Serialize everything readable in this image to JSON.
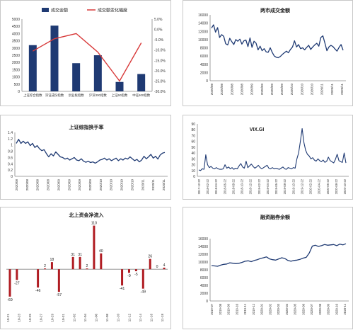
{
  "chart_data": [
    {
      "id": "turnover",
      "type": "bar",
      "categories": [
        "上证综合指数",
        "深证成份指数",
        "创业板指数",
        "沪深300指数",
        "上证50指数",
        "中证500指数"
      ],
      "series": [
        {
          "name": "成交金额",
          "type": "bar",
          "axis": "left",
          "values": [
            3200,
            4550,
            1950,
            2500,
            650,
            1200
          ]
        },
        {
          "name": "成交额变化幅度",
          "type": "line",
          "axis": "right",
          "values": [
            -10.5,
            -4.5,
            -2.0,
            -11.0,
            -25.0,
            -6.5
          ]
        }
      ],
      "yticks_left": [
        "0",
        "500",
        "1000",
        "1500",
        "2000",
        "2500",
        "3000",
        "3500",
        "4000",
        "4500",
        "5000"
      ],
      "ylim_left": [
        0,
        5000
      ],
      "yticks_right": [
        "5.0%",
        "0.0%",
        "-5.0%",
        "-10.0%",
        "-15.0%",
        "-20.0%",
        "-25.0%",
        "-30.0%"
      ],
      "ylim_right": [
        -30,
        5
      ],
      "colors": {
        "bar": "#1f3a73",
        "line": "#d83a3a"
      },
      "legend": "top"
    },
    {
      "id": "two_markets",
      "type": "line",
      "title": "两市成交金额",
      "yticks": [
        "0",
        "2000",
        "4000",
        "6000",
        "8000",
        "10000",
        "12000",
        "14000",
        "16000"
      ],
      "ylim": [
        0,
        16000
      ],
      "xticks": [
        "2020/08",
        "2020/08",
        "2020/08",
        "2020/08",
        "2020/09",
        "2020/09",
        "2020/09",
        "2020/09",
        "2020/10",
        "2020/10",
        "2020/10",
        "2020/11",
        "2020/11",
        "2020/11"
      ],
      "series": [
        {
          "values": [
            12800,
            13600,
            11800,
            12900,
            10500,
            11200,
            10800,
            9000,
            8700,
            10300,
            9500,
            8800,
            10000,
            9600,
            10100,
            8900,
            9700,
            9900,
            8300,
            10400,
            8100,
            9600,
            9100,
            7500,
            8400,
            7300,
            7800,
            7000,
            6900,
            8000,
            6900,
            6000,
            5700,
            5600,
            5900,
            6400,
            6800,
            7200,
            6800,
            7600,
            8200,
            9700,
            8200,
            8800,
            7800,
            8000,
            7500,
            8100,
            8600,
            7600,
            8200,
            8700,
            9100,
            8400,
            10500,
            10900,
            9200,
            7300,
            8200,
            8600,
            8300,
            7700,
            7200,
            8100,
            8800,
            7400
          ]
        }
      ],
      "colors": {
        "line": "#1f3a73"
      }
    },
    {
      "id": "turnover_rate",
      "type": "line",
      "title": "上证综指换手率",
      "yticks": [
        "0",
        "0.2",
        "0.4",
        "0.6",
        "0.8",
        "1",
        "1.2",
        "1.4"
      ],
      "ylim": [
        0,
        1.4
      ],
      "xticks": [
        "2020/08",
        "2020/08",
        "2020/08",
        "2020/08",
        "2020/09",
        "2020/09",
        "2020/09",
        "2020/09",
        "2020/10",
        "2020/10",
        "2020/10",
        "2020/10",
        "2020/11",
        "2020/11",
        "2020/11"
      ],
      "series": [
        {
          "values": [
            1.05,
            1.18,
            1.05,
            1.12,
            1.05,
            1.1,
            0.98,
            1.05,
            0.92,
            0.98,
            0.88,
            0.82,
            0.85,
            0.72,
            0.62,
            0.72,
            0.65,
            0.78,
            0.7,
            0.62,
            0.6,
            0.55,
            0.58,
            0.52,
            0.56,
            0.6,
            0.52,
            0.5,
            0.56,
            0.48,
            0.45,
            0.48,
            0.44,
            0.46,
            0.42,
            0.46,
            0.52,
            0.54,
            0.58,
            0.52,
            0.56,
            0.5,
            0.54,
            0.58,
            0.5,
            0.56,
            0.52,
            0.58,
            0.55,
            0.62,
            0.56,
            0.5,
            0.54,
            0.46,
            0.52,
            0.64,
            0.56,
            0.62,
            0.7,
            0.58,
            0.64,
            0.55,
            0.68,
            0.74,
            0.76
          ]
        }
      ],
      "colors": {
        "line": "#1f3a73"
      }
    },
    {
      "id": "vix",
      "type": "line",
      "title": "VIX.GI",
      "yticks": [
        "0",
        "10",
        "20",
        "30",
        "40",
        "50",
        "60",
        "70",
        "80",
        "90"
      ],
      "ylim": [
        0,
        90
      ],
      "xticks": [
        "2017-12-22",
        "2018-02-22",
        "2018-04-22",
        "2018-06-22",
        "2018-08-22",
        "2018-10-22",
        "2018-12-22",
        "2019-02-22",
        "2019-04-22",
        "2019-06-22",
        "2019-08-22",
        "2019-10-22",
        "2019-12-22",
        "2020-02-22",
        "2020-04-22",
        "2020-06-22",
        "2020-08-22",
        "2020-10-22"
      ],
      "series": [
        {
          "values": [
            11,
            10,
            13,
            12,
            37,
            20,
            15,
            17,
            14,
            13,
            15,
            13,
            12,
            12,
            13,
            20,
            14,
            16,
            13,
            15,
            12,
            14,
            13,
            18,
            22,
            16,
            14,
            26,
            15,
            18,
            21,
            17,
            14,
            16,
            19,
            15,
            13,
            15,
            17,
            19,
            14,
            13,
            15,
            13,
            14,
            13,
            12,
            14,
            16,
            13,
            12,
            15,
            14,
            13,
            15,
            14,
            30,
            40,
            60,
            82,
            58,
            45,
            38,
            35,
            30,
            32,
            28,
            26,
            30,
            27,
            25,
            28,
            24,
            26,
            33,
            27,
            25,
            23,
            29,
            38,
            27,
            25,
            24,
            40,
            23
          ]
        }
      ],
      "colors": {
        "line": "#1f3a73"
      }
    },
    {
      "id": "northbound",
      "type": "bar",
      "title": "北上资金净流入",
      "categories": [
        "10-21",
        "10-22",
        "10-23",
        "10-26",
        "10-27",
        "10-28",
        "10-29",
        "10-30",
        "11-02",
        "11-03",
        "11-04",
        "11-05",
        "11-06",
        "11-09",
        "11-10",
        "11-11",
        "11-12",
        "11-13",
        "11-16",
        "11-17",
        "11-18",
        "11-19",
        "11-20"
      ],
      "xticks": [
        "10-21",
        "10-23",
        "10-25",
        "10-27",
        "10-29",
        "10-31",
        "11-02",
        "11-04",
        "11-06",
        "11-08",
        "11-10",
        "11-12",
        "11-14",
        "11-16",
        "11-18"
      ],
      "values": [
        -69,
        -27,
        0,
        0,
        -46,
        2,
        18,
        -57,
        0,
        31,
        31,
        2,
        110,
        40,
        0,
        0,
        -41,
        -9,
        -5,
        -49,
        26,
        0,
        4
      ],
      "data_labels": [
        "-69",
        "-27",
        "",
        "",
        "-46",
        "2",
        "18",
        "-57",
        "",
        "31",
        "31",
        "2",
        "110",
        "40",
        "",
        "",
        "-41",
        "-9",
        "-5",
        "-49",
        "26",
        "0",
        "4"
      ],
      "ylim": [
        -80,
        120
      ],
      "colors": {
        "bar": "#b01c22"
      }
    },
    {
      "id": "margin",
      "type": "line",
      "title": "融资融券余额",
      "yticks": [
        "0",
        "2000",
        "4000",
        "6000",
        "8000",
        "10000",
        "12000",
        "14000",
        "16000"
      ],
      "ylim": [
        0,
        16000
      ],
      "xticks": [
        "2019-07",
        "2019-08",
        "2019-09",
        "2019-10",
        "2019-11",
        "2019-12",
        "2020-01",
        "2020-02",
        "2020-03",
        "2020-04",
        "2020-05",
        "2020-06",
        "2020-07",
        "2020-08",
        "2020-09",
        "2020-10",
        "2020-11"
      ],
      "series": [
        {
          "values": [
            9100,
            9000,
            8900,
            9200,
            9400,
            9500,
            9800,
            9700,
            9600,
            9700,
            9900,
            10200,
            10300,
            10100,
            10400,
            10600,
            10900,
            11100,
            11300,
            10800,
            10600,
            10500,
            10800,
            11100,
            10900,
            10400,
            10200,
            10400,
            10500,
            10700,
            11000,
            11200,
            12300,
            14100,
            14300,
            14000,
            14200,
            14500,
            14300,
            14400,
            14500,
            14200,
            14600,
            14400,
            14700
          ]
        }
      ],
      "colors": {
        "line": "#1f3a73"
      }
    }
  ]
}
